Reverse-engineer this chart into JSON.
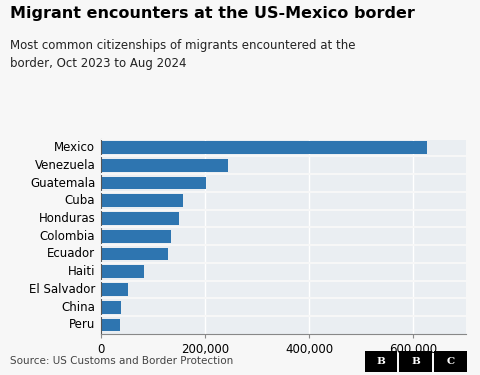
{
  "title": "Migrant encounters at the US-Mexico border",
  "subtitle": "Most common citizenships of migrants encountered at the\nborder, Oct 2023 to Aug 2024",
  "source": "Source: US Customs and Border Protection",
  "categories": [
    "Mexico",
    "Venezuela",
    "Guatemala",
    "Cuba",
    "Honduras",
    "Colombia",
    "Ecuador",
    "Haiti",
    "El Salvador",
    "China",
    "Peru"
  ],
  "values": [
    625000,
    245000,
    202000,
    158000,
    150000,
    135000,
    128000,
    82000,
    52000,
    38000,
    36000
  ],
  "bar_color": "#2e75b0",
  "background_color": "#f7f7f7",
  "plot_bg_color": "#eaeef2",
  "xlim": [
    0,
    700000
  ],
  "xticks": [
    0,
    200000,
    400000,
    600000
  ],
  "tick_labels": [
    "0",
    "200,000",
    "400,000",
    "600,000"
  ],
  "title_fontsize": 11.5,
  "subtitle_fontsize": 8.5,
  "label_fontsize": 8.5,
  "source_fontsize": 7.5,
  "bar_height": 0.72
}
